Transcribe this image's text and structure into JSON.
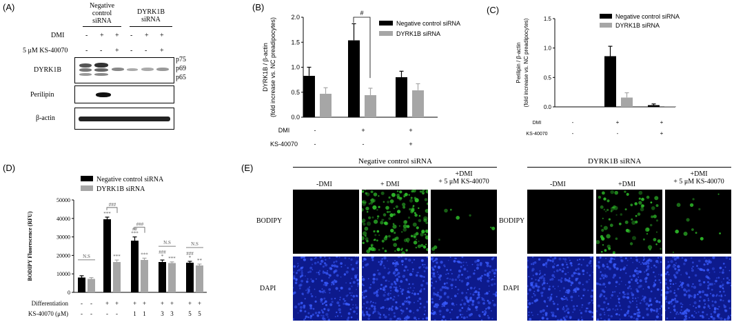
{
  "panelA": {
    "letter": "(A)",
    "groups": [
      "Negative control siRNA",
      "DYRK1B siRNA"
    ],
    "group_line1": [
      "Negative",
      "DYRK1B"
    ],
    "group_line2": [
      "control",
      "siRNA"
    ],
    "group_line3": [
      "siRNA",
      ""
    ],
    "row_labels": {
      "dmi": "DMI",
      "ks": "5 μM KS-40070"
    },
    "dmi_signs": [
      "-",
      "+",
      "+",
      "-",
      "+",
      "+"
    ],
    "ks_signs": [
      "-",
      "-",
      "+",
      "-",
      "-",
      "+"
    ],
    "blots": [
      "DYRK1B",
      "Perilipin",
      "β-actin"
    ],
    "isoforms": [
      "p75",
      "p69",
      "p65"
    ]
  },
  "panelB": {
    "letter": "(B)",
    "chart_data": {
      "type": "bar",
      "ylabel": "DYRK1B / β-actin\n(fold increase vs. NC preadipocytes)",
      "ylim": [
        0,
        2.0
      ],
      "yticks": [
        "0.0",
        "0.5",
        "1.0",
        "1.5",
        "2.0"
      ],
      "categories": [
        "DMI- KS-",
        "DMI+ KS-",
        "DMI+ KS+"
      ],
      "series": [
        {
          "name": "Negative control siRNA",
          "values": [
            0.83,
            1.54,
            0.8
          ],
          "errors": [
            0.17,
            0.33,
            0.12
          ],
          "color": "#000000"
        },
        {
          "name": "DYRK1B siRNA",
          "values": [
            0.47,
            0.44,
            0.54
          ],
          "errors": [
            0.12,
            0.14,
            0.13
          ],
          "color": "#a6a6a6"
        }
      ],
      "row_labels": [
        "DMI",
        "KS-40070"
      ],
      "dmi_signs": [
        "-",
        "+",
        "+"
      ],
      "ks_signs": [
        "-",
        "-",
        "+"
      ],
      "annotation": "#"
    }
  },
  "panelC": {
    "letter": "(C)",
    "chart_data": {
      "type": "bar",
      "ylabel": "Perilipin / β-actin\n(fold increase vs. NC preadipocytes)",
      "ylim": [
        0,
        1.5
      ],
      "yticks": [
        "0.0",
        "0.5",
        "1.0",
        "1.5"
      ],
      "categories": [
        "DMI- KS-",
        "DMI+ KS-",
        "DMI+ KS+"
      ],
      "series": [
        {
          "name": "Negative control siRNA",
          "values": [
            0.0,
            0.86,
            0.03
          ],
          "errors": [
            0,
            0.17,
            0.02
          ],
          "color": "#000000"
        },
        {
          "name": "DYRK1B siRNA",
          "values": [
            0.0,
            0.16,
            0.01
          ],
          "errors": [
            0,
            0.08,
            0.0
          ],
          "color": "#a6a6a6"
        }
      ],
      "row_labels": [
        "DMI",
        "KS-40070"
      ],
      "dmi_signs": [
        "-",
        "+",
        "+"
      ],
      "ks_signs": [
        "-",
        "-",
        "+"
      ]
    }
  },
  "panelD": {
    "letter": "(D)",
    "chart_data": {
      "type": "bar",
      "ylabel": "BODIPY Fluorescence (RFU)",
      "ylim": [
        0,
        50000
      ],
      "yticks": [
        "0",
        "10000",
        "20000",
        "30000",
        "40000",
        "50000"
      ],
      "categories": [
        "-",
        "+",
        "+ 1",
        "+ 3",
        "+ 5"
      ],
      "series": [
        {
          "name": "Negative control siRNA",
          "values": [
            8000,
            39500,
            28000,
            16500,
            16000
          ],
          "errors": [
            1000,
            1200,
            2000,
            1000,
            800
          ],
          "color": "#000000"
        },
        {
          "name": "DYRK1B siRNA",
          "values": [
            7200,
            16500,
            17500,
            15800,
            14500
          ],
          "errors": [
            800,
            1000,
            1000,
            700,
            800
          ],
          "color": "#a6a6a6"
        }
      ],
      "row_labels": [
        "Differentiation",
        "KS-40070 (μM)"
      ],
      "diff_signs": [
        "-",
        "-",
        "+",
        "+",
        "+",
        "+",
        "+",
        "+",
        "+",
        "+"
      ],
      "ks_values": [
        "-",
        "-",
        "-",
        "-",
        "1",
        "1",
        "3",
        "3",
        "5",
        "5"
      ],
      "annotations": {
        "ns": "N.S",
        "hash3": "###",
        "hash2": "##",
        "star3": "***",
        "star1": "*",
        "star2": "**"
      }
    }
  },
  "panelE": {
    "letter": "(E)",
    "group_titles": [
      "Negative control siRNA",
      "DYRK1B siRNA"
    ],
    "col_labels_nc": [
      "-DMI",
      "+ DMI",
      "+DMI\n+ 5 μM KS-40070"
    ],
    "col_labels_dy": [
      "-DMI",
      "+DMI",
      "+DMI\n+ 5 μM KS-40070"
    ],
    "row_labels": [
      "BODIPY",
      "DAPI"
    ],
    "colors": {
      "bodipy_bg": "#000000",
      "bodipy_signal": "#2fbf2a",
      "dapi_bg": "#0d1a8c",
      "dapi_signal": "#3a5cff"
    }
  }
}
